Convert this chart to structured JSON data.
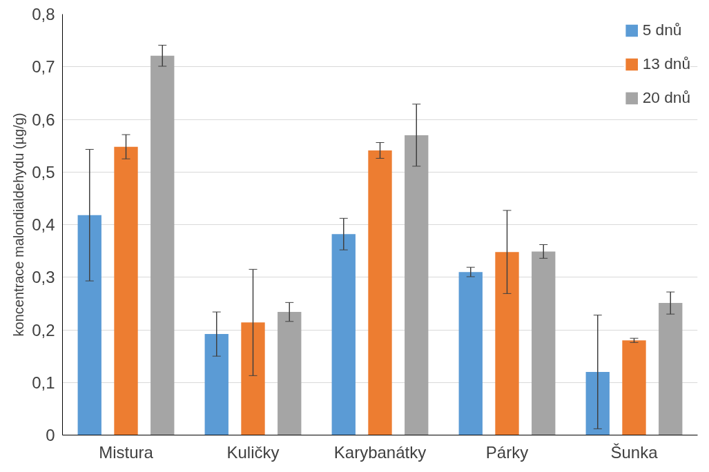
{
  "chart_data": {
    "type": "bar",
    "ylabel": "koncentrace malondialdehydu (µg/g)",
    "categories": [
      "Mistura",
      "Kuličky",
      "Karybanátky",
      "Párky",
      "Šunka"
    ],
    "series": [
      {
        "name": "5 dnů",
        "color": "#5b9bd5",
        "values": [
          0.418,
          0.192,
          0.382,
          0.31,
          0.12
        ],
        "errors": [
          0.125,
          0.042,
          0.03,
          0.009,
          [
            0.012,
            0.228
          ]
        ]
      },
      {
        "name": "13 dnů",
        "color": "#ed7d31",
        "values": [
          0.548,
          0.214,
          0.541,
          0.348,
          0.18
        ],
        "errors": [
          0.023,
          0.101,
          0.015,
          0.079,
          0.004
        ]
      },
      {
        "name": "20 dnů",
        "color": "#a5a5a5",
        "values": [
          0.721,
          0.234,
          0.57,
          0.349,
          0.251
        ],
        "errors": [
          0.02,
          0.018,
          0.059,
          0.013,
          0.021
        ]
      }
    ],
    "ylim": [
      0,
      0.8
    ],
    "yticks": [
      {
        "value": 0,
        "label": "0"
      },
      {
        "value": 0.1,
        "label": "0,1"
      },
      {
        "value": 0.2,
        "label": "0,2"
      },
      {
        "value": 0.3,
        "label": "0,3"
      },
      {
        "value": 0.4,
        "label": "0,4"
      },
      {
        "value": 0.5,
        "label": "0,5"
      },
      {
        "value": 0.6,
        "label": "0,6"
      },
      {
        "value": 0.7,
        "label": "0,7"
      },
      {
        "value": 0.8,
        "label": "0,8"
      }
    ],
    "grid": "y",
    "legend": "top right"
  }
}
